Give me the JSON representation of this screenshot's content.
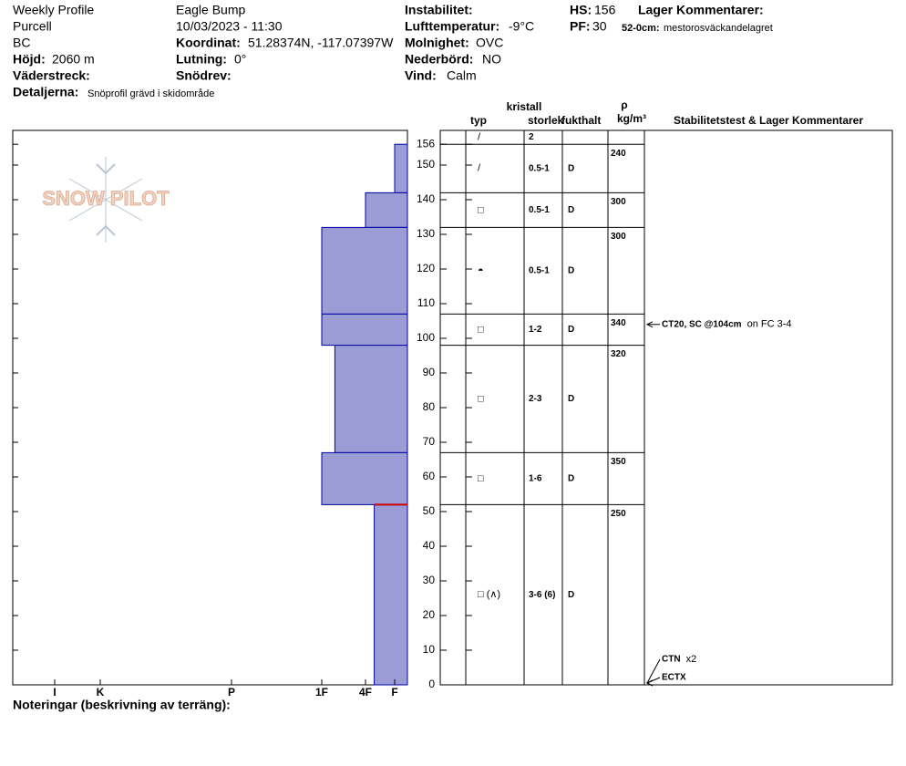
{
  "header": {
    "title": "Weekly Profile",
    "range": "Purcell",
    "region": "BC",
    "elevation": {
      "label": "Höjd:",
      "value": "2060 m"
    },
    "aspect": {
      "label": "Väderstreck:"
    },
    "details": {
      "label": "Detaljerna:",
      "value": "Snöprofil grävd i skidområde"
    },
    "location": "Eagle Bump",
    "datetime": "10/03/2023 - 11:30",
    "coordinates": {
      "label": "Koordinat:",
      "value": "51.28374N, -117.07397W"
    },
    "slope": {
      "label": "Lutning:",
      "value": "0°"
    },
    "wind_loading": {
      "label": "Snödrev:"
    },
    "instability": {
      "label": "Instabilitet:"
    },
    "air_temp": {
      "label": "Lufttemperatur:",
      "value": "-9°C"
    },
    "sky": {
      "label": "Molnighet:",
      "value": "OVC"
    },
    "precip": {
      "label": "Nederbörd:",
      "value": "NO"
    },
    "wind": {
      "label": "Vind:",
      "value": "Calm"
    },
    "hs": {
      "label": "HS:",
      "value": 156
    },
    "pf": {
      "label": "PF:",
      "value": 30
    },
    "layer_comments": {
      "label": "Lager Kommentarer:",
      "range": "52-0cm:",
      "text": "mestorosväckandelagret"
    },
    "logo": "SNOW PILOT"
  },
  "chart_data": {
    "type": "snow_profile",
    "ylim": [
      0,
      160
    ],
    "yticks": [
      0,
      10,
      20,
      30,
      40,
      50,
      60,
      70,
      80,
      90,
      100,
      110,
      120,
      130,
      140,
      150,
      156
    ],
    "xlim": [
      0,
      7
    ],
    "xticks": [
      {
        "value": 6,
        "label": "I"
      },
      {
        "value": 5,
        "label": "K"
      },
      {
        "value": 4,
        "label": "P"
      },
      {
        "value": 3,
        "label": "1F"
      },
      {
        "value": 2,
        "label": "4F"
      },
      {
        "value": 1,
        "label": "F"
      }
    ],
    "bar_color": "#9b9bd6",
    "weak_layer_color": "#cc0000",
    "weak_layer_depth": 52,
    "columns": {
      "crystal": "kristall",
      "type": "typ",
      "size": "storlek",
      "moisture": "fukthalt",
      "density_symbol": "ρ",
      "density_unit": "kg/m³",
      "comments": "Stabilitetstest & Lager Kommentarer"
    },
    "surface": {
      "type": "/",
      "size": "2"
    },
    "layers": [
      {
        "top": 156,
        "bottom": 142,
        "hardness": 1,
        "type": "/",
        "size": "0.5-1",
        "moisture": "D",
        "density": 240
      },
      {
        "top": 142,
        "bottom": 132,
        "hardness": 2,
        "type": "□",
        "size": "0.5-1",
        "moisture": "D",
        "density": 300
      },
      {
        "top": 132,
        "bottom": 107,
        "hardness": 3,
        "type": "◓",
        "size": "0.5-1",
        "moisture": "D",
        "density": 300
      },
      {
        "top": 107,
        "bottom": 98,
        "hardness": 3,
        "type": "□",
        "size": "1-2",
        "moisture": "D",
        "density": 340
      },
      {
        "top": 98,
        "bottom": 67,
        "hardness": 2.7,
        "type": "□",
        "size": "2-3",
        "moisture": "D",
        "density": 320
      },
      {
        "top": 67,
        "bottom": 52,
        "hardness": 3,
        "type": "□",
        "size": "1-6",
        "moisture": "D",
        "density": 350
      },
      {
        "top": 52,
        "bottom": 0,
        "hardness": 1.7,
        "type": "□ (∧)",
        "size": "3-6 (6)",
        "moisture": "D",
        "density": 250
      }
    ],
    "tests": [
      {
        "depth": 104,
        "label": "CT20, SC @104cm",
        "note": "on FC 3-4"
      },
      {
        "depth": 0,
        "label": "CTN",
        "note": "x2"
      },
      {
        "depth": 0,
        "label": "ECTX"
      }
    ]
  },
  "footer": "Noteringar (beskrivning av terräng):"
}
